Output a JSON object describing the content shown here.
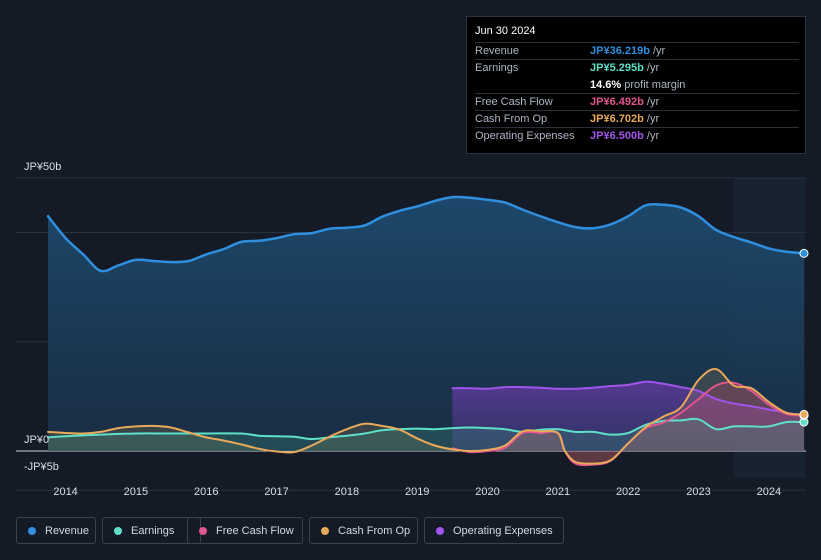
{
  "tooltip": {
    "date": "Jun 30 2024",
    "rows": [
      {
        "label": "Revenue",
        "value": "JP¥36.219b",
        "unit": "/yr",
        "color": "#2f8fde"
      },
      {
        "label": "Earnings",
        "value": "JP¥5.295b",
        "unit": "/yr",
        "color": "#5ee0c8"
      },
      {
        "label": "",
        "value": "14.6%",
        "unit": "profit margin",
        "color": "#ffffff"
      },
      {
        "label": "Free Cash Flow",
        "value": "JP¥6.492b",
        "unit": "/yr",
        "color": "#e2558f"
      },
      {
        "label": "Cash From Op",
        "value": "JP¥6.702b",
        "unit": "/yr",
        "color": "#e8a95a"
      },
      {
        "label": "Operating Expenses",
        "value": "JP¥6.500b",
        "unit": "/yr",
        "color": "#a054ea"
      }
    ]
  },
  "legend": [
    {
      "label": "Revenue",
      "color": "#2f8fde"
    },
    {
      "label": "Earnings",
      "color": "#5ee0c8"
    },
    {
      "label": "Free Cash Flow",
      "color": "#e2558f"
    },
    {
      "label": "Cash From Op",
      "color": "#e8a95a"
    },
    {
      "label": "Operating Expenses",
      "color": "#a054ea"
    }
  ],
  "chart_data": {
    "type": "area",
    "title": "",
    "xlabel": "",
    "ylabel": "",
    "y_axis_labels": [
      "JP¥50b",
      "JP¥0",
      "-JP¥5b"
    ],
    "ylim": [
      -5,
      50
    ],
    "xlim": [
      2013.75,
      2024.5
    ],
    "x_ticks": [
      2014,
      2015,
      2016,
      2017,
      2018,
      2019,
      2020,
      2021,
      2022,
      2023,
      2024
    ],
    "forecast_start": 2023.5,
    "series": [
      {
        "name": "Revenue",
        "color": "#2f8fde",
        "x": [
          2013.75,
          2014.0,
          2014.25,
          2014.5,
          2014.75,
          2015.0,
          2015.25,
          2015.5,
          2015.75,
          2016.0,
          2016.25,
          2016.5,
          2016.75,
          2017.0,
          2017.25,
          2017.5,
          2017.75,
          2018.0,
          2018.25,
          2018.5,
          2018.75,
          2019.0,
          2019.25,
          2019.5,
          2019.75,
          2020.0,
          2020.25,
          2020.5,
          2020.75,
          2021.0,
          2021.25,
          2021.5,
          2021.75,
          2022.0,
          2022.25,
          2022.5,
          2022.75,
          2023.0,
          2023.25,
          2023.5,
          2023.75,
          2024.0,
          2024.25,
          2024.5
        ],
        "values": [
          43.0,
          39.0,
          36.0,
          33.0,
          34.0,
          35.0,
          34.8,
          34.6,
          34.8,
          36.0,
          37.0,
          38.3,
          38.5,
          39.0,
          39.7,
          39.9,
          40.7,
          40.9,
          41.3,
          42.9,
          44.0,
          44.8,
          45.8,
          46.5,
          46.4,
          46.0,
          45.5,
          44.2,
          43.0,
          41.9,
          41.0,
          40.8,
          41.5,
          43.0,
          45.0,
          45.1,
          44.6,
          43.0,
          40.5,
          39.2,
          38.2,
          37.1,
          36.5,
          36.2
        ]
      },
      {
        "name": "Earnings",
        "color": "#5ee0c8",
        "x": [
          2013.75,
          2014.0,
          2014.5,
          2015.0,
          2015.5,
          2016.0,
          2016.5,
          2016.75,
          2017.0,
          2017.25,
          2017.5,
          2017.75,
          2018.0,
          2018.25,
          2018.5,
          2018.75,
          2019.0,
          2019.25,
          2019.5,
          2019.75,
          2020.0,
          2020.25,
          2020.5,
          2020.75,
          2021.0,
          2021.25,
          2021.5,
          2021.75,
          2022.0,
          2022.25,
          2022.5,
          2022.75,
          2023.0,
          2023.25,
          2023.5,
          2023.75,
          2024.0,
          2024.25,
          2024.5
        ],
        "values": [
          2.5,
          2.7,
          3.0,
          3.2,
          3.2,
          3.2,
          3.2,
          2.8,
          2.7,
          2.6,
          2.2,
          2.5,
          2.8,
          3.2,
          3.8,
          4.0,
          4.1,
          4.0,
          4.2,
          4.3,
          4.2,
          4.0,
          3.5,
          3.9,
          4.0,
          3.5,
          3.5,
          3.0,
          3.3,
          4.8,
          5.5,
          5.6,
          5.8,
          4.0,
          4.5,
          4.5,
          4.5,
          5.3,
          5.3
        ]
      },
      {
        "name": "Free Cash Flow",
        "color": "#e2558f",
        "x": [
          2019.5,
          2019.75,
          2020.0,
          2020.25,
          2020.5,
          2020.75,
          2021.0,
          2021.1,
          2021.25,
          2021.5,
          2021.75,
          2022.0,
          2022.25,
          2022.5,
          2022.75,
          2023.0,
          2023.25,
          2023.5,
          2023.75,
          2024.0,
          2024.25,
          2024.5
        ],
        "values": [
          0.5,
          -0.2,
          0.0,
          0.6,
          3.3,
          3.3,
          3.3,
          0.0,
          -2.3,
          -2.5,
          -1.8,
          1.4,
          4.2,
          5.2,
          7.0,
          9.5,
          12.0,
          12.5,
          11.0,
          8.5,
          6.8,
          6.5
        ]
      },
      {
        "name": "Cash From Op",
        "color": "#e8a95a",
        "x": [
          2013.75,
          2014.0,
          2014.25,
          2014.5,
          2014.75,
          2015.0,
          2015.25,
          2015.5,
          2015.75,
          2016.0,
          2016.25,
          2016.5,
          2016.75,
          2017.0,
          2017.25,
          2017.5,
          2017.75,
          2018.0,
          2018.25,
          2018.5,
          2018.75,
          2019.0,
          2019.25,
          2019.5,
          2019.75,
          2020.0,
          2020.25,
          2020.5,
          2020.75,
          2021.0,
          2021.1,
          2021.25,
          2021.5,
          2021.75,
          2022.0,
          2022.25,
          2022.5,
          2022.75,
          2023.0,
          2023.25,
          2023.5,
          2023.75,
          2024.0,
          2024.25,
          2024.5
        ],
        "values": [
          3.5,
          3.3,
          3.2,
          3.5,
          4.2,
          4.5,
          4.6,
          4.3,
          3.4,
          2.5,
          1.9,
          1.2,
          0.4,
          -0.1,
          -0.2,
          1.0,
          2.6,
          4.0,
          5.0,
          4.6,
          3.9,
          2.3,
          1.0,
          0.3,
          0.0,
          0.2,
          1.0,
          3.6,
          3.6,
          3.3,
          0.0,
          -2.0,
          -2.3,
          -1.7,
          1.4,
          4.4,
          6.3,
          8.0,
          13.0,
          15.0,
          12.0,
          11.5,
          9.0,
          7.0,
          6.7
        ]
      },
      {
        "name": "Operating Expenses",
        "color": "#a054ea",
        "x": [
          2019.5,
          2019.75,
          2020.0,
          2020.25,
          2020.5,
          2020.75,
          2021.0,
          2021.25,
          2021.5,
          2021.75,
          2022.0,
          2022.25,
          2022.5,
          2022.75,
          2023.0,
          2023.25,
          2023.5,
          2023.75,
          2024.0,
          2024.25,
          2024.5
        ],
        "values": [
          11.5,
          11.5,
          11.4,
          11.7,
          11.7,
          11.6,
          11.4,
          11.4,
          11.6,
          11.9,
          12.1,
          12.7,
          12.3,
          11.7,
          11.0,
          9.5,
          8.7,
          8.2,
          7.6,
          7.0,
          6.5
        ]
      }
    ]
  }
}
